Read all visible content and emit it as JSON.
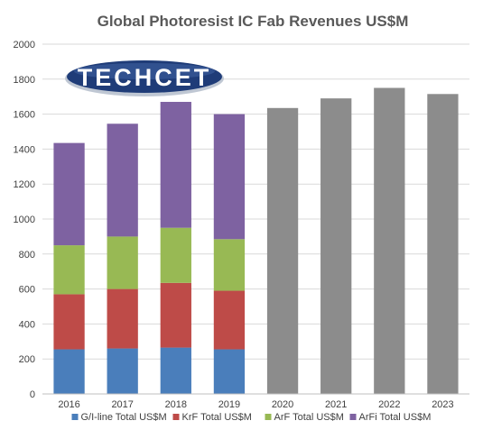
{
  "chart_data": {
    "type": "bar",
    "stacked": true,
    "title": "Global Photoresist IC Fab Revenues US$M",
    "xlabel": "",
    "ylabel": "",
    "ylim": [
      0,
      2000
    ],
    "yticks": [
      0,
      200,
      400,
      600,
      800,
      1000,
      1200,
      1400,
      1600,
      1800,
      2000
    ],
    "grid": true,
    "legend_position": "bottom",
    "categories": [
      "2016",
      "2017",
      "2018",
      "2019",
      "2020",
      "2021",
      "2022",
      "2023"
    ],
    "series": [
      {
        "name": "G/I-line Total US$M",
        "color": "#4a7ebb",
        "values": [
          255,
          260,
          265,
          255,
          null,
          null,
          null,
          null
        ]
      },
      {
        "name": "KrF Total US$M",
        "color": "#be4b48",
        "values": [
          315,
          340,
          370,
          335,
          null,
          null,
          null,
          null
        ]
      },
      {
        "name": "ArF Total US$M",
        "color": "#98b954",
        "values": [
          280,
          300,
          315,
          295,
          null,
          null,
          null,
          null
        ]
      },
      {
        "name": "ArFi Total US$M",
        "color": "#7e62a1",
        "values": [
          585,
          645,
          720,
          715,
          null,
          null,
          null,
          null
        ]
      }
    ],
    "forecast": {
      "color": "#8c8c8c",
      "values": [
        null,
        null,
        null,
        null,
        1635,
        1690,
        1750,
        1715
      ]
    }
  },
  "logo": {
    "text": "TECHCET"
  }
}
